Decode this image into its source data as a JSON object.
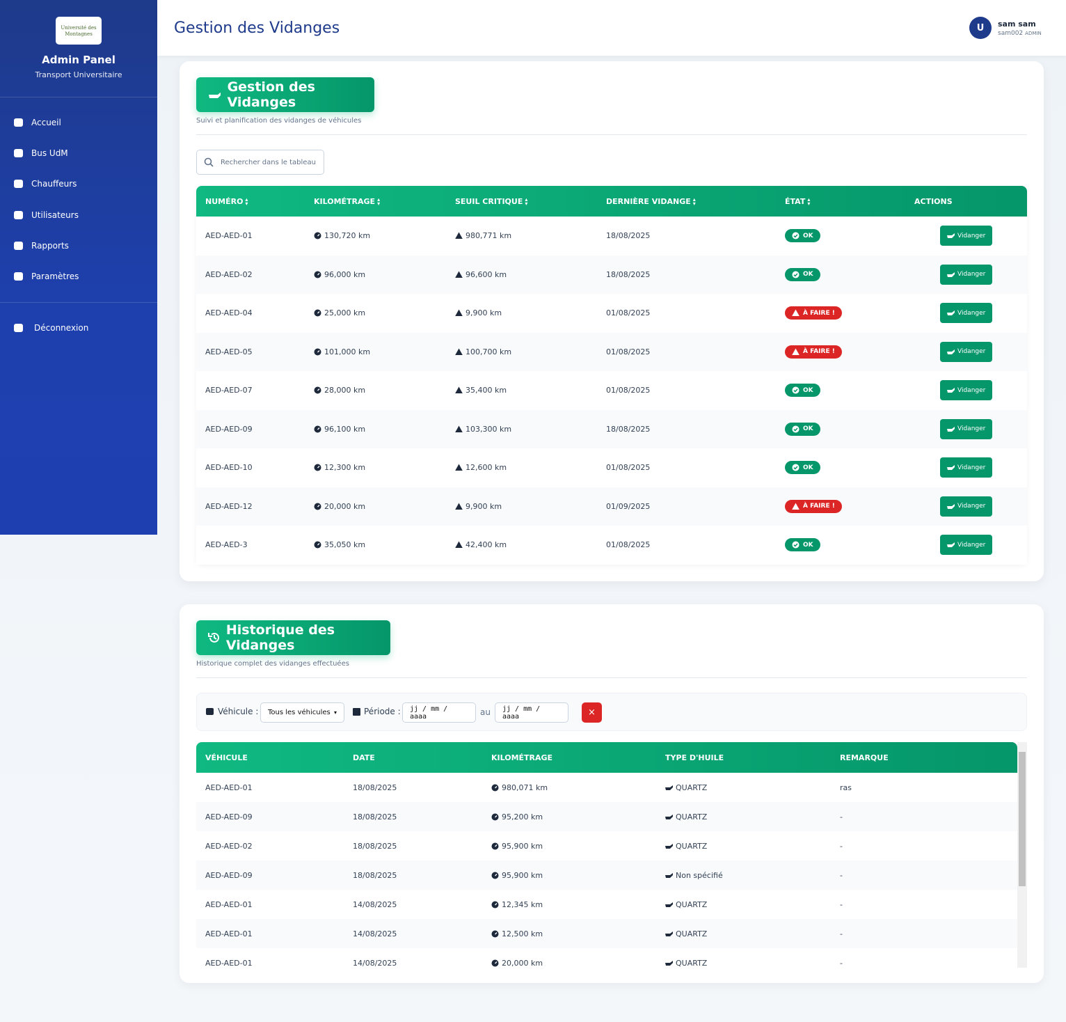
{
  "sidebar": {
    "logo": "Université des Montagnes",
    "title": "Admin Panel",
    "subtitle": "Transport Universitaire",
    "nav": [
      "Accueil",
      "Bus UdM",
      "Chauffeurs",
      "Utilisateurs",
      "Rapports",
      "Paramètres"
    ],
    "logout": "Déconnexion"
  },
  "header": {
    "title": "Gestion des Vidanges",
    "avatar": "U",
    "user_name": "sam sam",
    "user_login": "sam002",
    "user_role": "ADMIN"
  },
  "section1": {
    "title": "Gestion des Vidanges",
    "subtitle": "Suivi et planification des vidanges de véhicules",
    "search_placeholder": "Rechercher dans le tableau",
    "table": {
      "columns": [
        "NUMÉRO",
        "KILOMÉTRAGE",
        "SEUIL CRITIQUE",
        "DERNIÈRE VIDANGE",
        "ÉTAT",
        "ACTIONS"
      ],
      "action_label": "Vidanger",
      "status_colors": {
        "OK": "#059669",
        "À FAIRE !": "#dc2626"
      },
      "rows": [
        [
          "AED-AED-01",
          "130,720 km",
          "980,771 km",
          "18/08/2025",
          "OK"
        ],
        [
          "AED-AED-02",
          "96,000 km",
          "96,600 km",
          "18/08/2025",
          "OK"
        ],
        [
          "AED-AED-04",
          "25,000 km",
          "9,900 km",
          "01/08/2025",
          "À FAIRE !"
        ],
        [
          "AED-AED-05",
          "101,000 km",
          "100,700 km",
          "01/08/2025",
          "À FAIRE !"
        ],
        [
          "AED-AED-07",
          "28,000 km",
          "35,400 km",
          "01/08/2025",
          "OK"
        ],
        [
          "AED-AED-09",
          "96,100 km",
          "103,300 km",
          "18/08/2025",
          "OK"
        ],
        [
          "AED-AED-10",
          "12,300 km",
          "12,600 km",
          "01/08/2025",
          "OK"
        ],
        [
          "AED-AED-12",
          "20,000 km",
          "9,900 km",
          "01/09/2025",
          "À FAIRE !"
        ],
        [
          "AED-AED-3",
          "35,050 km",
          "42,400 km",
          "01/08/2025",
          "OK"
        ]
      ]
    }
  },
  "section2": {
    "title": "Historique des Vidanges",
    "subtitle": "Historique complet des vidanges effectuées",
    "filters": {
      "vehicle_label": "Véhicule :",
      "vehicle_option": "Tous les véhicules",
      "period_label": "Période :",
      "date_from": "jj / mm / aaaa",
      "to": "au",
      "date_to": "jj / mm / aaaa",
      "clear": "×"
    },
    "table": {
      "columns": [
        "VÉHICULE",
        "DATE",
        "KILOMÉTRAGE",
        "TYPE D'HUILE",
        "REMARQUE"
      ],
      "rows": [
        [
          "AED-AED-01",
          "18/08/2025",
          "980,071 km",
          "QUARTZ",
          "ras"
        ],
        [
          "AED-AED-09",
          "18/08/2025",
          "95,200 km",
          "QUARTZ",
          "-"
        ],
        [
          "AED-AED-02",
          "18/08/2025",
          "95,900 km",
          "QUARTZ",
          "-"
        ],
        [
          "AED-AED-09",
          "18/08/2025",
          "95,900 km",
          "Non spécifié",
          "-"
        ],
        [
          "AED-AED-01",
          "14/08/2025",
          "12,345 km",
          "QUARTZ",
          "-"
        ],
        [
          "AED-AED-01",
          "14/08/2025",
          "12,500 km",
          "QUARTZ",
          "-"
        ],
        [
          "AED-AED-01",
          "14/08/2025",
          "20,000 km",
          "QUARTZ",
          "-"
        ]
      ]
    }
  }
}
